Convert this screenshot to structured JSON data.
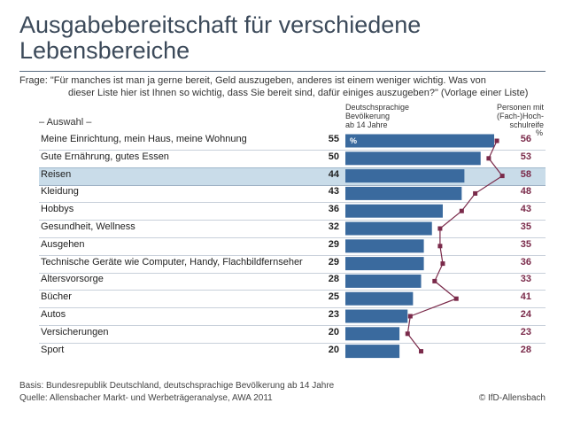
{
  "title_line1": "Ausgabebereitschaft für verschiedene",
  "title_line2": "Lebensbereiche",
  "question_line1": "Frage: \"Für manches ist man ja gerne bereit, Geld auszugeben, anderes ist einem weniger wichtig. Was von",
  "question_line2": "dieser Liste hier ist Ihnen so wichtig, dass Sie bereit sind, dafür einiges auszugeben?\" (Vorlage einer Liste)",
  "selection_label": "– Auswahl –",
  "header_left": [
    "Deutschsprachige",
    "Bevölkerung",
    "ab 14 Jahre"
  ],
  "header_right": [
    "Personen mit",
    "(Fach-)Hoch-",
    "schulreife"
  ],
  "percent_symbol": "%",
  "bar_percent_label": "%",
  "footer_basis": "Basis: Bundesrepublik Deutschland, deutschsprachige Bevölkerung ab 14 Jahre",
  "footer_source": "Quelle: Allensbacher Markt- und Werbeträgeranalyse, AWA 2011",
  "credit": "© IfD-Allensbach",
  "colors": {
    "bar": "#3a6a9e",
    "line": "#7a2a4a",
    "highlight": "#c9dce9"
  },
  "highlighted_category": "Reisen",
  "chart_data": {
    "type": "bar",
    "orientation": "horizontal",
    "categories": [
      "Meine Einrichtung, mein Haus, meine Wohnung",
      "Gute Ernährung, gutes Essen",
      "Reisen",
      "Kleidung",
      "Hobbys",
      "Gesundheit, Wellness",
      "Ausgehen",
      "Technische Geräte wie Computer, Handy, Flachbildfernseher",
      "Altersvorsorge",
      "Bücher",
      "Autos",
      "Versicherungen",
      "Sport"
    ],
    "series": [
      {
        "name": "Deutschsprachige Bevölkerung ab 14 Jahre",
        "type": "bar",
        "values": [
          55,
          50,
          44,
          43,
          36,
          32,
          29,
          29,
          28,
          25,
          23,
          20,
          20
        ]
      },
      {
        "name": "Personen mit (Fach-)Hochschulreife",
        "type": "line",
        "values": [
          56,
          53,
          58,
          48,
          43,
          35,
          35,
          36,
          33,
          41,
          24,
          23,
          28
        ]
      }
    ],
    "xlim": [
      0,
      60
    ],
    "grid": false,
    "legend": "none"
  }
}
